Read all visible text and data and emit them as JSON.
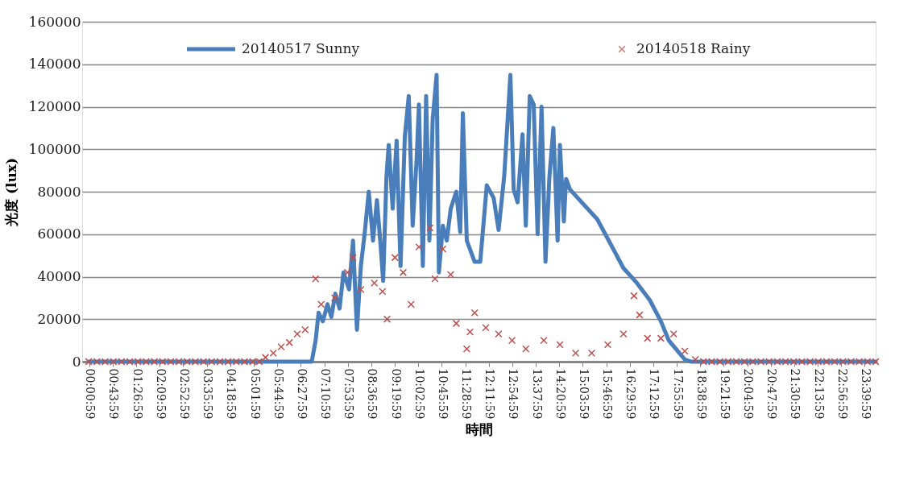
{
  "chart_data": {
    "type": "line",
    "xlabel": "時間",
    "ylabel": "光度 (lux)",
    "xlim": [
      -0.2,
      24.0
    ],
    "ylim": [
      0,
      160000
    ],
    "yticks": [
      0,
      20000,
      40000,
      60000,
      80000,
      100000,
      120000,
      140000,
      160000
    ],
    "xticks": [
      {
        "value": 0.0164,
        "label": "00:00:59"
      },
      {
        "value": 0.7331,
        "label": "00:43:59"
      },
      {
        "value": 1.4497,
        "label": "01:26:59"
      },
      {
        "value": 2.1664,
        "label": "02:09:59"
      },
      {
        "value": 2.8831,
        "label": "02:52:59"
      },
      {
        "value": 3.5997,
        "label": "03:35:59"
      },
      {
        "value": 4.3164,
        "label": "04:18:59"
      },
      {
        "value": 5.0331,
        "label": "05:01:59"
      },
      {
        "value": 5.7497,
        "label": "05:44:59"
      },
      {
        "value": 6.4664,
        "label": "06:27:59"
      },
      {
        "value": 7.1831,
        "label": "07:10:59"
      },
      {
        "value": 7.8997,
        "label": "07:53:59"
      },
      {
        "value": 8.6164,
        "label": "08:36:59"
      },
      {
        "value": 9.3331,
        "label": "09:19:59"
      },
      {
        "value": 10.0497,
        "label": "10:02:59"
      },
      {
        "value": 10.7664,
        "label": "10:45:59"
      },
      {
        "value": 11.4831,
        "label": "11:28:59"
      },
      {
        "value": 12.1997,
        "label": "12:11:59"
      },
      {
        "value": 12.9164,
        "label": "12:54:59"
      },
      {
        "value": 13.6331,
        "label": "13:37:59"
      },
      {
        "value": 14.3497,
        "label": "14:20:59"
      },
      {
        "value": 15.0664,
        "label": "15:03:59"
      },
      {
        "value": 15.7831,
        "label": "15:46:59"
      },
      {
        "value": 16.4997,
        "label": "16:29:59"
      },
      {
        "value": 17.2164,
        "label": "17:12:59"
      },
      {
        "value": 17.9331,
        "label": "17:55:59"
      },
      {
        "value": 18.6497,
        "label": "18:38:59"
      },
      {
        "value": 19.3664,
        "label": "19:21:59"
      },
      {
        "value": 20.0831,
        "label": "20:04:59"
      },
      {
        "value": 20.7997,
        "label": "20:47:59"
      },
      {
        "value": 21.5164,
        "label": "21:30:59"
      },
      {
        "value": 22.2331,
        "label": "22:13:59"
      },
      {
        "value": 22.9497,
        "label": "22:56:59"
      },
      {
        "value": 23.6664,
        "label": "23:39:59"
      }
    ],
    "grid": "y",
    "legend": "top",
    "series": [
      {
        "name": "20140517 Sunny",
        "marker": "none",
        "line_style": "solid",
        "color": "#4a7ebb",
        "x": [
          0.0,
          6.8,
          6.92,
          7.01,
          7.14,
          7.28,
          7.4,
          7.52,
          7.65,
          7.77,
          7.94,
          8.06,
          8.18,
          8.3,
          8.42,
          8.54,
          8.67,
          8.79,
          8.91,
          8.98,
          9.08,
          9.15,
          9.27,
          9.39,
          9.51,
          9.64,
          9.76,
          9.88,
          10.0,
          10.07,
          10.19,
          10.29,
          10.39,
          10.49,
          10.61,
          10.68,
          10.8,
          10.92,
          11.04,
          11.21,
          11.33,
          11.41,
          11.53,
          11.77,
          11.94,
          12.14,
          12.35,
          12.5,
          12.67,
          12.86,
          12.96,
          13.08,
          13.23,
          13.33,
          13.45,
          13.57,
          13.69,
          13.81,
          13.93,
          14.05,
          14.17,
          14.3,
          14.37,
          14.49,
          14.56,
          14.68,
          15.51,
          16.31,
          16.72,
          17.11,
          17.45,
          17.69,
          18.18,
          18.37,
          24.0
        ],
        "values": [
          0,
          0,
          10000,
          23000,
          19000,
          27000,
          21000,
          32000,
          25000,
          42000,
          34000,
          57000,
          15000,
          45000,
          61000,
          80000,
          57000,
          76000,
          53000,
          38000,
          87000,
          102000,
          72000,
          104000,
          45000,
          106000,
          125000,
          64000,
          95000,
          121000,
          45000,
          125000,
          57000,
          114000,
          135000,
          42000,
          64000,
          57000,
          72000,
          80000,
          61000,
          117000,
          57000,
          47000,
          47000,
          83000,
          77000,
          62000,
          87000,
          135000,
          81000,
          75000,
          107000,
          64000,
          125000,
          121000,
          60000,
          120000,
          47000,
          87000,
          110000,
          57000,
          102000,
          66000,
          86000,
          81000,
          67000,
          44000,
          37000,
          29000,
          19000,
          10000,
          1000,
          0,
          0
        ]
      },
      {
        "name": "20140518 Rainy",
        "type": "scatter",
        "marker": "cross",
        "color": "#c0504d",
        "x": [
          0.0,
          0.25,
          0.5,
          0.75,
          1.0,
          1.25,
          1.5,
          1.75,
          2.0,
          2.25,
          2.5,
          2.75,
          3.0,
          3.25,
          3.5,
          3.75,
          4.0,
          4.25,
          4.5,
          4.75,
          5.0,
          5.2,
          5.39,
          5.63,
          5.87,
          6.12,
          6.36,
          6.6,
          6.92,
          7.09,
          7.5,
          7.89,
          8.06,
          8.3,
          8.71,
          8.96,
          9.1,
          9.34,
          9.59,
          9.83,
          10.07,
          10.41,
          10.56,
          10.8,
          11.04,
          11.21,
          11.53,
          11.63,
          11.77,
          12.11,
          12.5,
          12.91,
          13.33,
          13.88,
          14.37,
          14.85,
          15.34,
          15.83,
          16.31,
          16.63,
          16.8,
          17.04,
          17.45,
          17.84,
          18.18,
          18.5,
          18.75,
          19.0,
          19.25,
          19.5,
          19.75,
          20.0,
          20.25,
          20.5,
          20.75,
          21.0,
          21.25,
          21.5,
          21.75,
          22.0,
          22.25,
          22.5,
          22.75,
          23.0,
          23.25,
          23.5,
          23.75,
          24.0
        ],
        "values": [
          0,
          0,
          0,
          0,
          0,
          0,
          0,
          0,
          0,
          0,
          0,
          0,
          0,
          0,
          0,
          0,
          0,
          0,
          0,
          0,
          0,
          0,
          2000,
          4000,
          7000,
          9000,
          13000,
          15000,
          39000,
          27000,
          30000,
          42000,
          49000,
          34000,
          37000,
          33000,
          20000,
          49000,
          42000,
          27000,
          54000,
          63000,
          39000,
          53000,
          41000,
          18000,
          6000,
          14000,
          23000,
          16000,
          13000,
          10000,
          6000,
          10000,
          8000,
          4000,
          4000,
          8000,
          13000,
          31000,
          22000,
          11000,
          11000,
          13000,
          5000,
          1000,
          0,
          0,
          0,
          0,
          0,
          0,
          0,
          0,
          0,
          0,
          0,
          0,
          0,
          0,
          0,
          0,
          0,
          0,
          0,
          0,
          0,
          0
        ]
      }
    ]
  }
}
